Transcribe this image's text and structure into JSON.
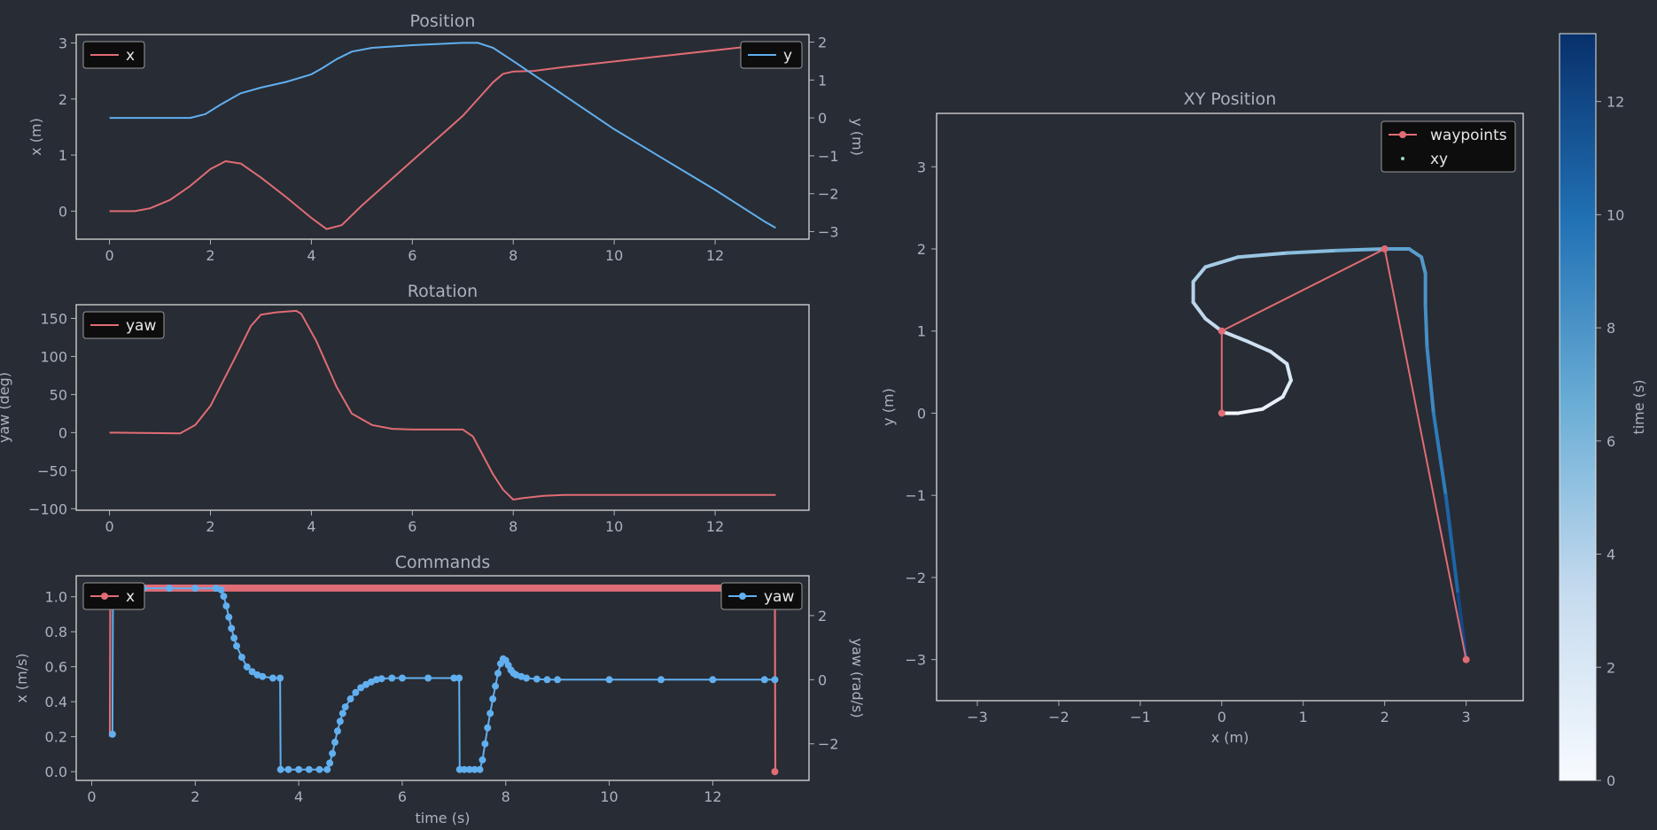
{
  "colors": {
    "background": "#282c34",
    "axes_bg": "#282c34",
    "frame": "#e6e6e6",
    "text": "#abb2bf",
    "red": "#e06c75",
    "blue": "#61afef",
    "legend_bg": "#0d0d0d"
  },
  "chart_data": [
    {
      "name": "position",
      "type": "line",
      "title": "Position",
      "xlabel": "",
      "ylabel": "x (m)",
      "ylabel_right": "y (m)",
      "xlim": [
        -0.66,
        13.86
      ],
      "ylim": [
        -0.5,
        3.15
      ],
      "ylim_right": [
        -3.2,
        2.2
      ],
      "xticks": [
        0,
        2,
        4,
        6,
        8,
        10,
        12
      ],
      "yticks": [
        0,
        1,
        2,
        3
      ],
      "yticks_right": [
        -3,
        -2,
        -1,
        0,
        1,
        2
      ],
      "legend_left": "x",
      "legend_right": "y",
      "series": [
        {
          "name": "x",
          "axis": "left",
          "color": "#e06c75",
          "x": [
            0,
            0.5,
            0.8,
            1.2,
            1.6,
            2.0,
            2.3,
            2.6,
            3.0,
            3.5,
            4.0,
            4.3,
            4.6,
            5.0,
            5.5,
            6.0,
            6.5,
            7.0,
            7.4,
            7.6,
            7.8,
            8.0,
            8.4,
            9,
            10,
            11,
            12,
            13,
            13.2
          ],
          "y": [
            0,
            0,
            0.05,
            0.2,
            0.45,
            0.75,
            0.89,
            0.85,
            0.6,
            0.25,
            -0.12,
            -0.32,
            -0.25,
            0.1,
            0.5,
            0.9,
            1.3,
            1.7,
            2.1,
            2.3,
            2.45,
            2.49,
            2.5,
            2.57,
            2.67,
            2.77,
            2.87,
            2.97,
            2.99
          ]
        },
        {
          "name": "y",
          "axis": "right",
          "color": "#61afef",
          "x": [
            0,
            1.6,
            1.9,
            2.2,
            2.6,
            3.0,
            3.5,
            4.0,
            4.2,
            4.5,
            4.8,
            5.2,
            6.0,
            7.0,
            7.3,
            7.6,
            8.0,
            9,
            10,
            11,
            12,
            13,
            13.2
          ],
          "y": [
            0,
            0,
            0.1,
            0.35,
            0.65,
            0.8,
            0.95,
            1.15,
            1.3,
            1.55,
            1.75,
            1.85,
            1.92,
            1.98,
            1.98,
            1.85,
            1.5,
            0.6,
            -0.3,
            -1.1,
            -1.9,
            -2.75,
            -2.9
          ]
        }
      ]
    },
    {
      "name": "rotation",
      "type": "line",
      "title": "Rotation",
      "xlabel": "",
      "ylabel": "yaw (deg)",
      "xlim": [
        -0.66,
        13.86
      ],
      "ylim": [
        -102,
        168
      ],
      "xticks": [
        0,
        2,
        4,
        6,
        8,
        10,
        12
      ],
      "yticks": [
        -100,
        -50,
        0,
        50,
        100,
        150
      ],
      "legend_left": "yaw",
      "series": [
        {
          "name": "yaw",
          "axis": "left",
          "color": "#e06c75",
          "x": [
            0,
            1.4,
            1.7,
            2.0,
            2.5,
            2.8,
            3.0,
            3.3,
            3.7,
            3.8,
            4.1,
            4.5,
            4.8,
            5.2,
            5.6,
            6.0,
            7.0,
            7.2,
            7.4,
            7.6,
            7.8,
            8.0,
            8.2,
            8.6,
            9,
            10,
            11,
            12,
            13,
            13.2
          ],
          "y": [
            0,
            -1,
            10,
            35,
            100,
            140,
            155,
            158,
            160,
            156,
            120,
            60,
            25,
            10,
            5,
            4,
            4,
            -5,
            -30,
            -55,
            -75,
            -88,
            -86,
            -83,
            -82,
            -82,
            -82,
            -82,
            -82,
            -82
          ]
        }
      ]
    },
    {
      "name": "commands",
      "type": "line",
      "title": "Commands",
      "xlabel": "time (s)",
      "ylabel": "x (m/s)",
      "ylabel_right": "yaw (rad/s)",
      "xlim": [
        -0.3,
        13.86
      ],
      "ylim": [
        -0.05,
        1.12
      ],
      "ylim_right": [
        -3.14,
        3.24
      ],
      "xticks": [
        0,
        2,
        4,
        6,
        8,
        10,
        12
      ],
      "yticks": [
        0.0,
        0.2,
        0.4,
        0.6,
        0.8,
        1.0
      ],
      "yticks_right": [
        -2,
        0,
        2
      ],
      "legend_left": "x",
      "legend_right": "yaw",
      "series": [
        {
          "name": "x",
          "axis": "left",
          "color": "#e06c75",
          "markers": false,
          "x": [
            0.35,
            0.36,
            0.4,
            1,
            2,
            3,
            4,
            5,
            6,
            7,
            8,
            9,
            10,
            11,
            12,
            13,
            13.2,
            13.21
          ],
          "y": [
            0.2,
            1.05,
            1.05,
            1.05,
            1.05,
            1.05,
            1.05,
            1.05,
            1.05,
            1.05,
            1.05,
            1.05,
            1.05,
            1.05,
            1.05,
            1.05,
            1.05,
            0.0
          ]
        },
        {
          "name": "yaw",
          "axis": "right",
          "color": "#61afef",
          "markers": true,
          "x": [
            0.4,
            0.41,
            0.5,
            1.0,
            1.5,
            2.0,
            2.4,
            2.5,
            2.55,
            2.6,
            2.65,
            2.7,
            2.75,
            2.8,
            2.9,
            3.0,
            3.1,
            3.2,
            3.3,
            3.5,
            3.64,
            3.65,
            3.8,
            4.0,
            4.2,
            4.4,
            4.55,
            4.6,
            4.65,
            4.7,
            4.75,
            4.8,
            4.85,
            4.9,
            5.0,
            5.1,
            5.2,
            5.3,
            5.4,
            5.5,
            5.6,
            5.8,
            6.0,
            6.5,
            7.0,
            7.1,
            7.11,
            7.2,
            7.3,
            7.4,
            7.5,
            7.55,
            7.6,
            7.65,
            7.7,
            7.75,
            7.8,
            7.85,
            7.9,
            7.95,
            8.0,
            8.05,
            8.1,
            8.15,
            8.2,
            8.3,
            8.4,
            8.6,
            8.8,
            9,
            10,
            11,
            12,
            13,
            13.2
          ],
          "y": [
            -1.7,
            2.85,
            2.85,
            2.85,
            2.85,
            2.85,
            2.85,
            2.8,
            2.6,
            2.3,
            1.95,
            1.6,
            1.3,
            1.05,
            0.7,
            0.4,
            0.25,
            0.15,
            0.1,
            0.05,
            0.05,
            -2.8,
            -2.8,
            -2.8,
            -2.8,
            -2.8,
            -2.8,
            -2.6,
            -2.3,
            -1.95,
            -1.6,
            -1.3,
            -1.05,
            -0.85,
            -0.6,
            -0.4,
            -0.25,
            -0.15,
            -0.07,
            0,
            0.03,
            0.05,
            0.05,
            0.05,
            0.05,
            0.05,
            -2.8,
            -2.8,
            -2.8,
            -2.8,
            -2.8,
            -2.5,
            -2.0,
            -1.5,
            -1.05,
            -0.6,
            -0.2,
            0.2,
            0.5,
            0.65,
            0.6,
            0.45,
            0.3,
            0.2,
            0.15,
            0.1,
            0.05,
            0.02,
            0,
            0,
            0,
            0,
            0,
            0,
            0
          ]
        }
      ]
    },
    {
      "name": "xy",
      "type": "line",
      "title": "XY Position",
      "xlabel": "x (m)",
      "ylabel": "y (m)",
      "xlim": [
        -3.5,
        3.7
      ],
      "ylim": [
        -3.5,
        3.65
      ],
      "xticks": [
        -3,
        -2,
        -1,
        0,
        1,
        2,
        3
      ],
      "yticks": [
        -3,
        -2,
        -1,
        0,
        1,
        2,
        3
      ],
      "legend": [
        "waypoints",
        "xy"
      ],
      "legend_placement": "top-right",
      "waypoints": {
        "x": [
          0,
          0,
          2,
          3
        ],
        "y": [
          0,
          1,
          2,
          -3
        ]
      },
      "trajectory": {
        "x": [
          0,
          0.2,
          0.5,
          0.75,
          0.85,
          0.8,
          0.6,
          0.3,
          0.0,
          -0.2,
          -0.35,
          -0.35,
          -0.2,
          0.2,
          0.8,
          1.4,
          2.0,
          2.3,
          2.45,
          2.5,
          2.5,
          2.52,
          2.6,
          2.75,
          2.9,
          3.0
        ],
        "y": [
          0,
          0,
          0.05,
          0.2,
          0.4,
          0.6,
          0.75,
          0.88,
          1.0,
          1.15,
          1.35,
          1.6,
          1.78,
          1.9,
          1.95,
          1.98,
          2.0,
          2.0,
          1.9,
          1.7,
          1.3,
          0.8,
          0.0,
          -1.0,
          -2.2,
          -3.0
        ],
        "t": [
          0,
          0.5,
          1.0,
          1.5,
          2.0,
          2.4,
          2.7,
          3.0,
          3.3,
          3.6,
          3.9,
          4.2,
          4.5,
          4.9,
          5.5,
          6.3,
          7.2,
          7.4,
          7.7,
          8.0,
          8.3,
          8.6,
          9.3,
          10.5,
          12.0,
          13.2
        ]
      }
    },
    {
      "name": "colorbar",
      "type": "heatmap",
      "label": "time (s)",
      "range": [
        0,
        13.2
      ],
      "ticks": [
        0,
        2,
        4,
        6,
        8,
        10,
        12
      ],
      "colors": [
        "#f7fbff",
        "#c6dbef",
        "#6baed6",
        "#2171b5",
        "#08306b"
      ]
    }
  ]
}
